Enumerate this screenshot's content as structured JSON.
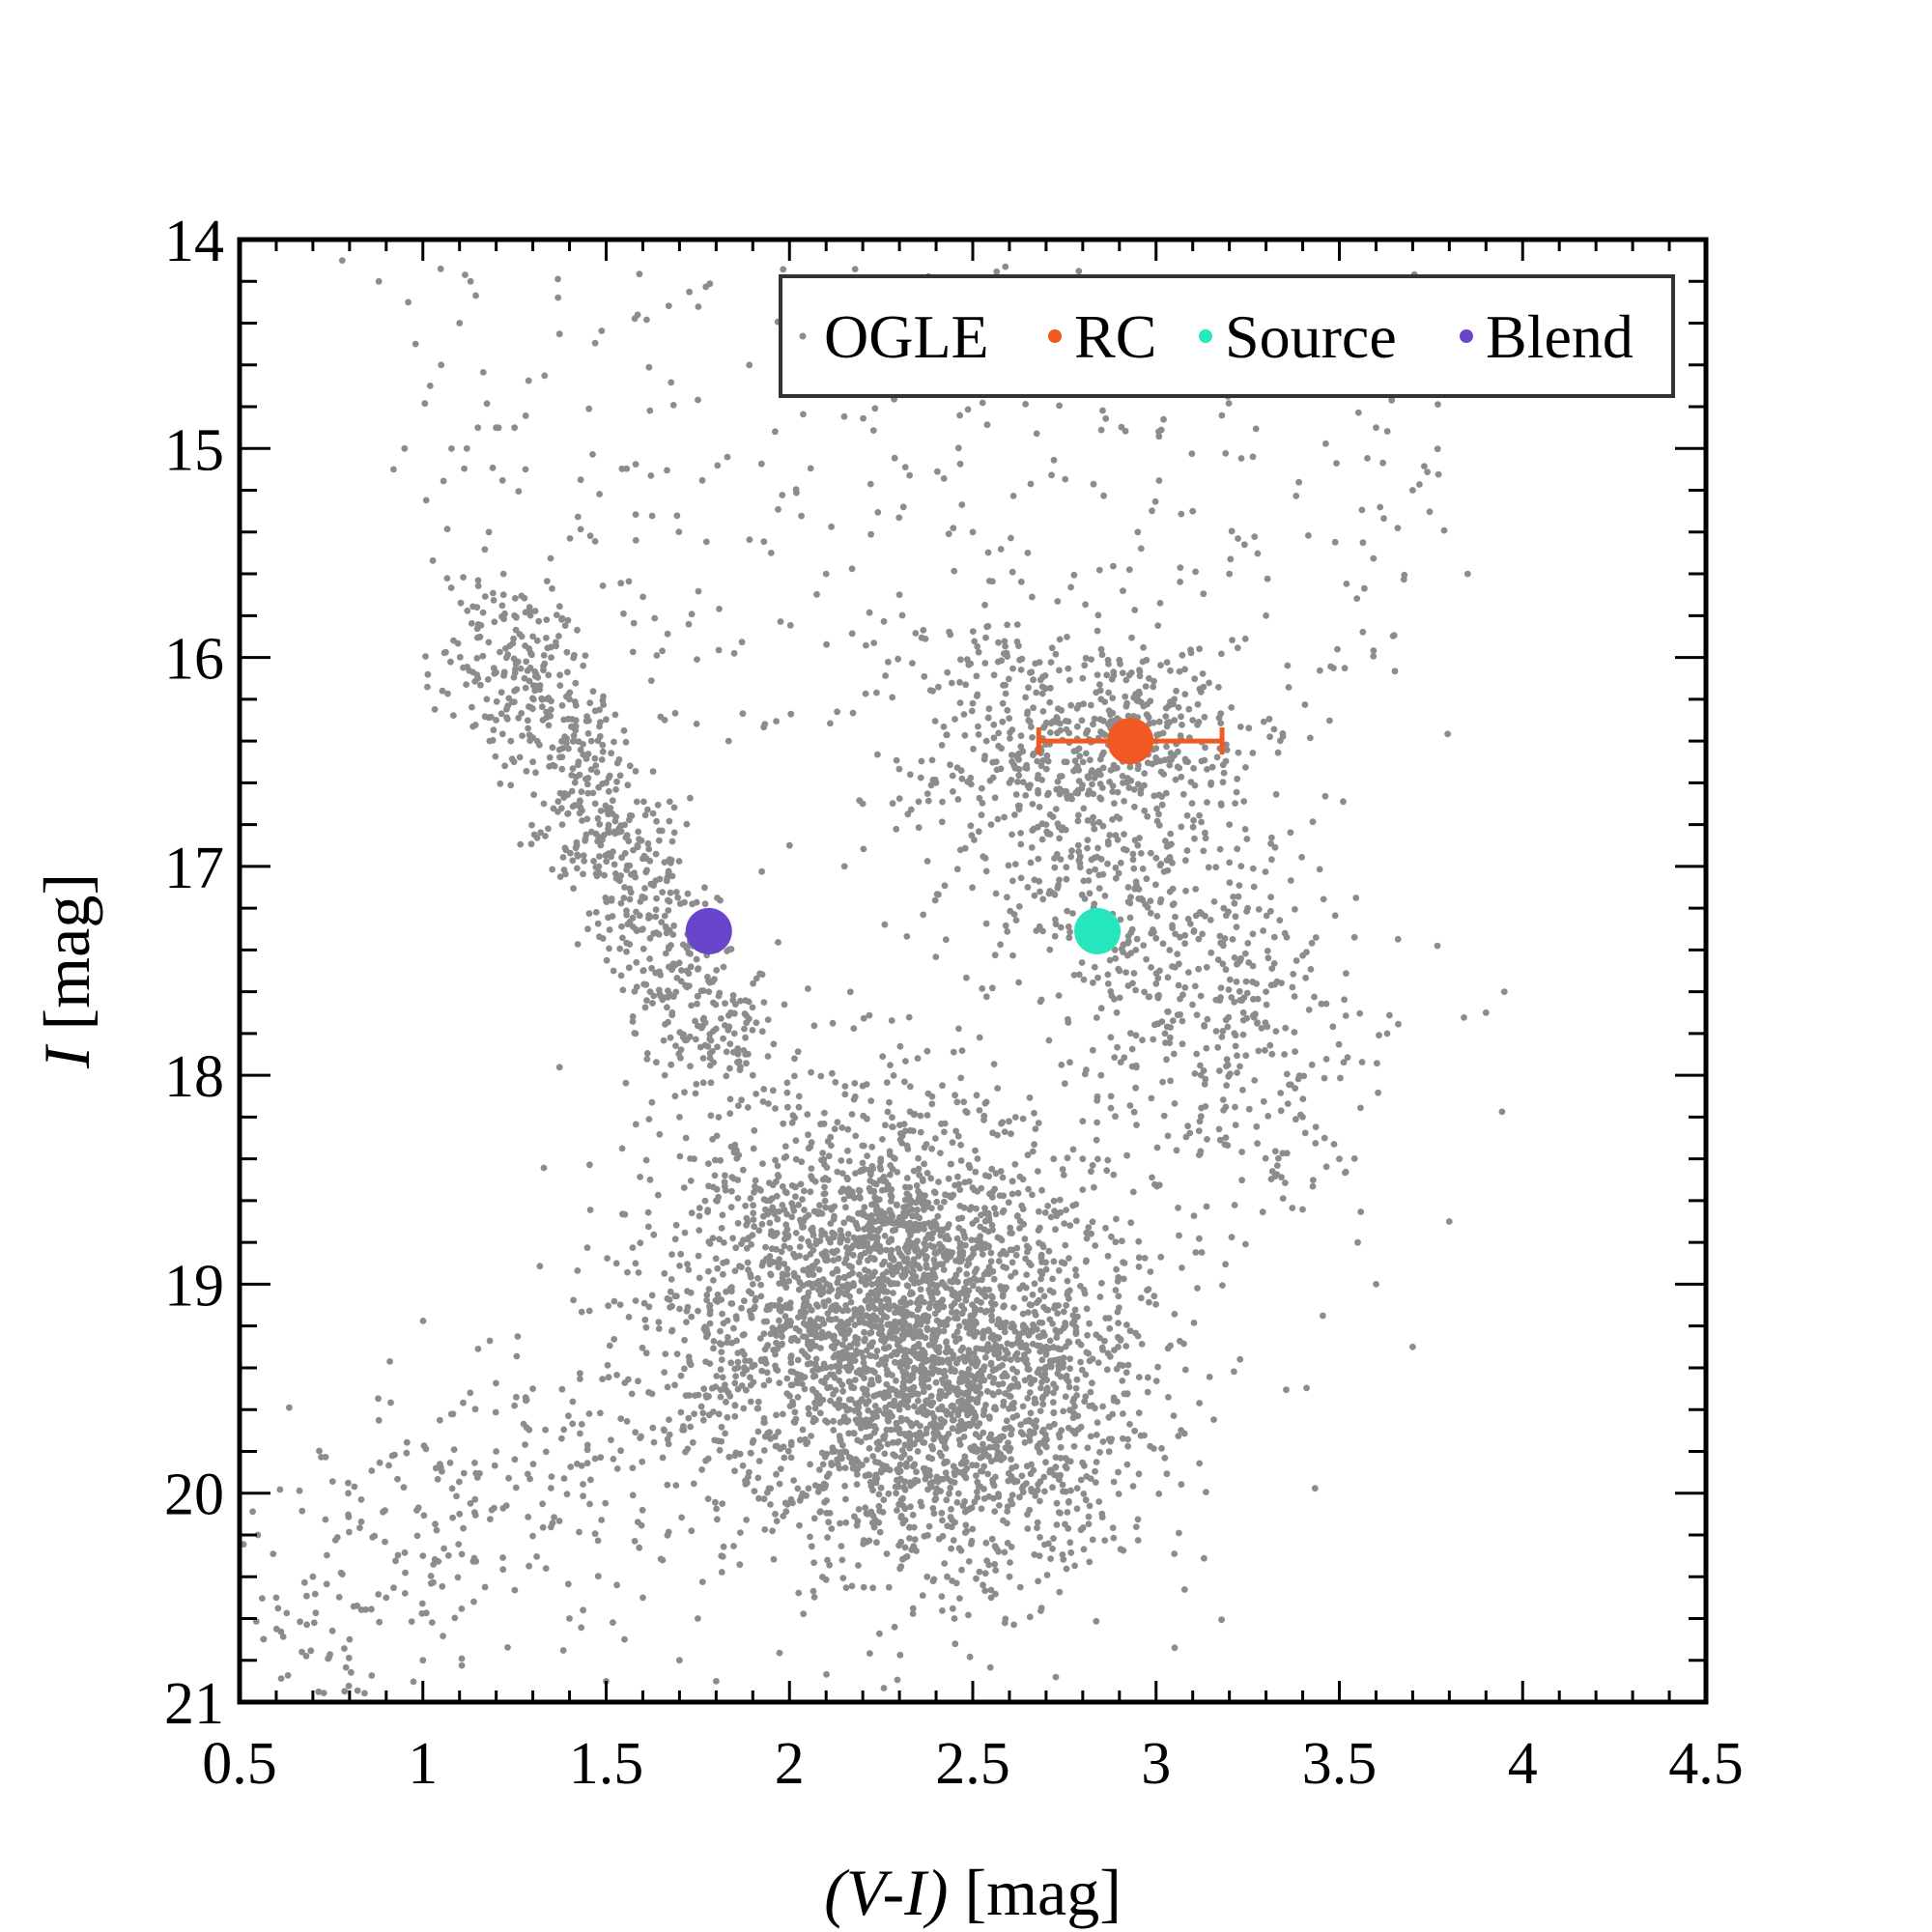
{
  "chart_data": {
    "type": "scatter",
    "xlabel": "(V-I) [mag]",
    "ylabel": "I [mag]",
    "xlim": [
      0.5,
      4.5
    ],
    "ylim": [
      14,
      21
    ],
    "y_inverted": true,
    "grid": false,
    "legend_position": "top-right",
    "x_ticks": [
      "0.5",
      "1",
      "1.5",
      "2",
      "2.5",
      "3",
      "3.5",
      "4",
      "4.5"
    ],
    "y_ticks": [
      "14",
      "15",
      "16",
      "17",
      "18",
      "19",
      "20",
      "21"
    ],
    "series": [
      {
        "name": "OGLE",
        "color": "#8c8c8c",
        "description_count": 6000,
        "x": [
          0.78,
          0.88,
          0.96,
          0.98,
          1.02,
          1.05,
          1.1,
          1.13,
          0.92,
          0.95,
          1.12,
          1.15,
          1.2,
          1.25,
          1.28,
          1.18,
          1.22,
          1.3,
          1.35,
          1.4,
          1.46,
          1.5,
          1.22,
          1.25,
          1.27,
          1.15,
          1.2,
          1.24,
          1.3,
          1.33,
          1.38,
          1.42,
          1.48,
          1.45,
          1.55,
          1.6,
          1.62,
          1.58,
          1.52,
          1.68,
          1.72,
          1.78,
          1.84,
          1.88,
          1.66,
          1.7,
          1.74,
          1.8,
          1.62,
          1.58,
          1.9,
          1.95,
          2.05,
          2.1,
          2.2,
          2.3,
          2.15,
          2.25,
          2.35,
          2.4,
          2.45,
          2.6,
          2.7,
          2.75,
          2.8,
          2.85,
          2.9,
          2.95,
          3.0,
          3.05,
          3.1,
          3.15,
          3.2,
          3.25,
          3.3,
          3.35,
          3.4,
          3.5,
          3.55,
          3.6,
          3.7,
          3.8,
          3.9,
          3.95,
          2.8,
          2.85,
          2.9,
          2.95,
          3.0,
          3.05,
          2.75,
          2.7,
          2.65,
          2.6,
          2.95,
          3.1,
          3.2,
          3.3,
          1.95,
          2.1,
          2.3,
          2.5,
          2.65,
          2.2,
          2.4,
          2.55,
          2.0,
          2.15,
          1.9,
          1.85,
          2.9,
          3.0,
          3.1,
          3.25,
          3.4,
          3.6,
          3.7,
          3.85,
          3.95,
          1.3,
          1.2,
          1.1,
          1.0,
          0.9,
          0.8,
          0.7,
          0.6,
          0.55,
          1.0,
          1.4,
          1.5,
          1.55,
          1.6,
          1.7,
          1.75,
          1.8,
          2.45,
          2.55,
          2.6
        ],
        "y": [
          14.1,
          14.2,
          14.3,
          14.5,
          14.7,
          14.6,
          14.4,
          14.2,
          15.1,
          15.0,
          15.0,
          14.9,
          14.9,
          14.9,
          15.1,
          15.4,
          15.6,
          15.9,
          16.0,
          16.2,
          16.4,
          16.6,
          15.7,
          15.8,
          15.9,
          16.1,
          16.3,
          16.4,
          16.5,
          16.7,
          16.8,
          16.9,
          17.0,
          17.3,
          17.1,
          17.3,
          17.6,
          17.8,
          17.5,
          17.7,
          17.5,
          17.6,
          17.7,
          17.9,
          18.0,
          18.2,
          18.4,
          18.6,
          18.5,
          18.9,
          19.0,
          19.1,
          19.2,
          19.4,
          19.5,
          19.6,
          19.8,
          19.9,
          19.8,
          19.7,
          19.9,
          19.5,
          19.3,
          18.9,
          18.4,
          18.0,
          17.5,
          16.9,
          16.5,
          16.2,
          16.3,
          16.6,
          16.8,
          17.2,
          17.6,
          17.9,
          18.2,
          18.4,
          18.8,
          19.0,
          19.3,
          18.7,
          17.7,
          17.6,
          16.1,
          16.2,
          16.3,
          16.2,
          16.4,
          16.3,
          16.5,
          16.8,
          17.1,
          16.6,
          15.4,
          15.3,
          15.6,
          15.8,
          15.5,
          15.6,
          15.7,
          15.4,
          15.5,
          16.7,
          16.6,
          16.8,
          16.9,
          17.0,
          18.0,
          17.8,
          14.5,
          14.4,
          14.3,
          14.6,
          14.2,
          14.9,
          15.2,
          15.6,
          14.3,
          19.5,
          19.8,
          20.1,
          20.3,
          20.5,
          20.7,
          20.4,
          20.5,
          20.2,
          20.8,
          20.6,
          20.9,
          20.7,
          20.5,
          20.8,
          20.6,
          20.9,
          20.6,
          20.5,
          20.4
        ]
      },
      {
        "name": "RC",
        "color": "#f05a22",
        "x": [
          2.93
        ],
        "y": [
          16.4
        ],
        "x_err": [
          0.25
        ]
      },
      {
        "name": "Source",
        "color": "#26e6bf",
        "x": [
          2.84
        ],
        "y": [
          17.31
        ]
      },
      {
        "name": "Blend",
        "color": "#6b44cc",
        "x": [
          1.78
        ],
        "y": [
          17.31
        ]
      }
    ]
  },
  "legend": [
    {
      "label": "OGLE",
      "color": "#8c8c8c"
    },
    {
      "label": "RC",
      "color": "#f05a22"
    },
    {
      "label": "Source",
      "color": "#26e6bf"
    },
    {
      "label": "Blend",
      "color": "#6b44cc"
    }
  ]
}
